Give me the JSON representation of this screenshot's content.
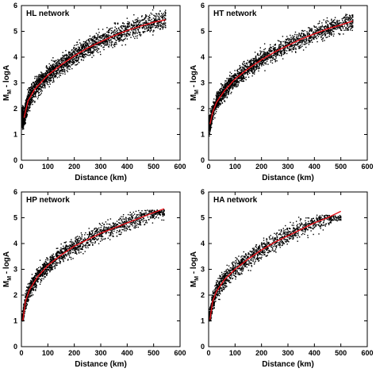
{
  "chart_data": [
    {
      "type": "scatter",
      "title": "HL network",
      "xlabel": "Distance (km)",
      "ylabel_main": "M",
      "ylabel_sub": "M",
      "ylabel_rest": " - logA",
      "xlim": [
        0,
        600
      ],
      "ylim": [
        0,
        6
      ],
      "xticks": [
        "0",
        "100",
        "200",
        "300",
        "400",
        "500",
        "600"
      ],
      "yticks": [
        "0",
        "1",
        "2",
        "3",
        "4",
        "5",
        "6"
      ],
      "grid": false,
      "point_color": "#000000",
      "fit_color": "#e8141c",
      "fit": {
        "x": [
          10,
          25,
          50,
          100,
          150,
          200,
          250,
          300,
          350,
          400,
          450,
          500,
          545
        ],
        "y": [
          1.65,
          2.3,
          2.75,
          3.3,
          3.7,
          4.05,
          4.35,
          4.6,
          4.83,
          5.03,
          5.2,
          5.35,
          5.45
        ]
      },
      "scatter_summary": {
        "x_max": 545,
        "y_min": 1.2,
        "y_max": 5.85,
        "count_approx": 2500,
        "spread": 0.38
      }
    },
    {
      "type": "scatter",
      "title": "HT network",
      "xlabel": "Distance (km)",
      "ylabel_main": "M",
      "ylabel_sub": "M",
      "ylabel_rest": " - logA",
      "xlim": [
        0,
        600
      ],
      "ylim": [
        0,
        6
      ],
      "xticks": [
        "0",
        "100",
        "200",
        "300",
        "400",
        "500",
        "600"
      ],
      "yticks": [
        "0",
        "1",
        "2",
        "3",
        "4",
        "5",
        "6"
      ],
      "grid": false,
      "point_color": "#000000",
      "fit_color": "#e8141c",
      "fit": {
        "x": [
          5,
          15,
          30,
          60,
          100,
          150,
          200,
          250,
          300,
          350,
          400,
          450,
          500,
          545
        ],
        "y": [
          1.4,
          1.85,
          2.25,
          2.7,
          3.15,
          3.55,
          3.9,
          4.2,
          4.45,
          4.7,
          4.9,
          5.1,
          5.25,
          5.4
        ]
      },
      "scatter_summary": {
        "x_max": 545,
        "y_min": 0.8,
        "y_max": 5.7,
        "count_approx": 2200,
        "spread": 0.33
      }
    },
    {
      "type": "scatter",
      "title": "HP network",
      "xlabel": "Distance (km)",
      "ylabel_main": "M",
      "ylabel_sub": "M",
      "ylabel_rest": " - logA",
      "xlim": [
        0,
        600
      ],
      "ylim": [
        0,
        6
      ],
      "xticks": [
        "0",
        "100",
        "200",
        "300",
        "400",
        "500",
        "600"
      ],
      "yticks": [
        "0",
        "1",
        "2",
        "3",
        "4",
        "5",
        "6"
      ],
      "grid": false,
      "point_color": "#000000",
      "fit_color": "#e8141c",
      "fit": {
        "x": [
          5,
          15,
          30,
          60,
          100,
          150,
          200,
          250,
          300,
          350,
          400,
          450,
          500,
          540
        ],
        "y": [
          1.0,
          1.75,
          2.2,
          2.7,
          3.15,
          3.55,
          3.9,
          4.15,
          4.4,
          4.6,
          4.8,
          5.0,
          5.2,
          5.35
        ]
      },
      "scatter_summary": {
        "x_max": 540,
        "y_min": 1.0,
        "y_max": 5.3,
        "count_approx": 1800,
        "spread": 0.32
      }
    },
    {
      "type": "scatter",
      "title": "HA network",
      "xlabel": "Distance (km)",
      "ylabel_main": "M",
      "ylabel_sub": "M",
      "ylabel_rest": " - logA",
      "xlim": [
        0,
        600
      ],
      "ylim": [
        0,
        6
      ],
      "xticks": [
        "0",
        "100",
        "200",
        "300",
        "400",
        "500",
        "600"
      ],
      "yticks": [
        "0",
        "1",
        "2",
        "3",
        "4",
        "5",
        "6"
      ],
      "grid": false,
      "point_color": "#000000",
      "fit_color": "#e8141c",
      "fit": {
        "x": [
          5,
          15,
          30,
          60,
          100,
          150,
          200,
          250,
          300,
          350,
          400,
          450,
          500
        ],
        "y": [
          1.05,
          1.75,
          2.15,
          2.6,
          3.0,
          3.4,
          3.75,
          4.05,
          4.3,
          4.55,
          4.8,
          5.0,
          5.25
        ]
      },
      "scatter_summary": {
        "x_max": 500,
        "y_min": 1.0,
        "y_max": 5.1,
        "count_approx": 1500,
        "spread": 0.35
      }
    }
  ]
}
